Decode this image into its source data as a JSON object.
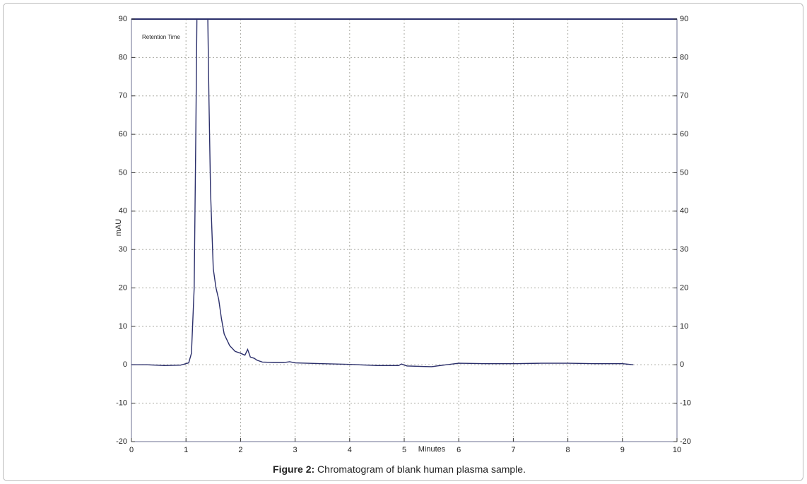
{
  "chart_data": {
    "type": "line",
    "annotation": "Retention Time",
    "ylabel": "mAU",
    "xlabel": "Minutes",
    "caption": {
      "label": "Figure 2:",
      "text": "Chromatogram of blank human plasma sample."
    },
    "x": [
      0,
      0.3,
      0.6,
      0.9,
      1.05,
      1.1,
      1.15,
      1.18,
      1.2,
      1.4,
      1.42,
      1.45,
      1.5,
      1.55,
      1.6,
      1.65,
      1.7,
      1.8,
      1.9,
      2.0,
      2.08,
      2.13,
      2.18,
      2.25,
      2.3,
      2.4,
      2.6,
      2.8,
      2.9,
      3.0,
      3.5,
      4.0,
      4.5,
      4.9,
      4.95,
      5.05,
      5.5,
      5.6,
      6.0,
      6.5,
      7.0,
      7.5,
      8.0,
      8.5,
      9.0,
      9.2
    ],
    "series": [
      {
        "color": "#2b2f6b",
        "values": [
          0,
          0,
          -0.2,
          -0.1,
          0.5,
          3,
          20,
          60,
          90,
          90,
          70,
          45,
          25,
          20,
          17,
          12,
          8,
          5,
          3.5,
          3,
          2.5,
          4,
          2,
          1.7,
          1.2,
          0.7,
          0.6,
          0.6,
          0.8,
          0.5,
          0.3,
          0.1,
          -0.2,
          -0.2,
          0.2,
          -0.3,
          -0.5,
          -0.3,
          0.4,
          0.3,
          0.3,
          0.4,
          0.4,
          0.3,
          0.3,
          0
        ]
      }
    ],
    "xlim": [
      0,
      10
    ],
    "xticks": [
      0,
      1,
      2,
      3,
      4,
      5,
      6,
      7,
      8,
      9,
      10
    ],
    "ylim": [
      -20,
      90
    ],
    "yticks": [
      -20,
      -10,
      0,
      10,
      20,
      30,
      40,
      50,
      60,
      70,
      80,
      90
    ],
    "y2lim": [
      -20,
      90
    ],
    "y2ticks": [
      -20,
      -10,
      0,
      10,
      20,
      30,
      40,
      50,
      60,
      70,
      80,
      90
    ],
    "grid": true
  }
}
